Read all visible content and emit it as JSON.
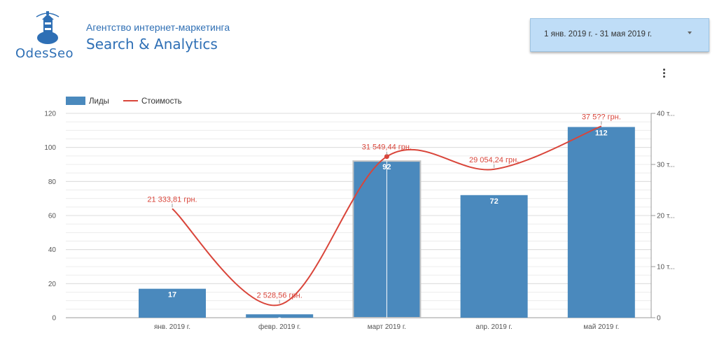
{
  "header": {
    "logo_text": "OdesSeo",
    "subtitle": "Агентство интернет-маркетинга",
    "title": "Search & Analytics"
  },
  "date_range": {
    "label": "1 янв. 2019 г. - 31 мая 2019 г."
  },
  "colors": {
    "bar": "#4a89bd",
    "line": "#d9453a",
    "brand": "#2e6fb5"
  },
  "chart_data": {
    "type": "bar",
    "categories": [
      "янв. 2019 г.",
      "февр. 2019 г.",
      "март 2019 г.",
      "апр. 2019 г.",
      "май 2019 г."
    ],
    "legend_position": "top-left",
    "grid": true,
    "series": [
      {
        "name": "Лиды",
        "type": "bar",
        "axis": "left",
        "values": [
          17,
          2,
          92,
          72,
          112
        ],
        "labels": [
          "17",
          "2",
          "92",
          "72",
          "112"
        ]
      },
      {
        "name": "Стоимость",
        "type": "line",
        "axis": "right",
        "values": [
          21333.81,
          2528.56,
          31549.44,
          29054.24,
          37500
        ],
        "labels": [
          "21 333,81 грн.",
          "2 528,56 грн.",
          "31 549,44 грн.",
          "29 054,24 грн.",
          "37 5?? грн."
        ]
      }
    ],
    "y_left": {
      "min": 0,
      "max": 120,
      "ticks": [
        "0",
        "20",
        "40",
        "60",
        "80",
        "100",
        "120"
      ]
    },
    "y_right": {
      "min": 0,
      "max": 40000,
      "ticks": [
        "0",
        "10 т...",
        "20 т...",
        "30 т...",
        "40 т..."
      ]
    }
  }
}
